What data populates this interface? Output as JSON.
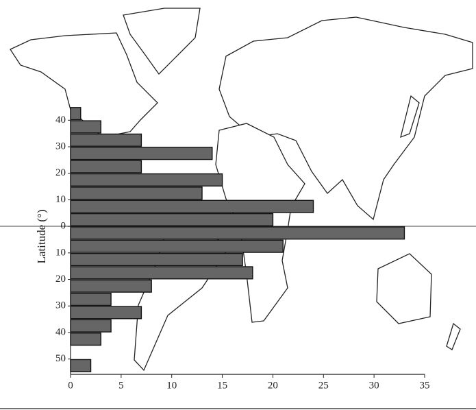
{
  "chart_data": {
    "type": "histogram",
    "orientation": "horizontal",
    "y_label": "Latitude (°)",
    "bins": [
      45,
      40,
      35,
      30,
      25,
      20,
      15,
      10,
      5,
      0,
      -5,
      -10,
      -15,
      -20,
      -25,
      -30,
      -35,
      -40,
      -45,
      -50,
      -55
    ],
    "values": [
      1,
      3,
      7,
      14,
      7,
      15,
      13,
      24,
      20,
      33,
      21,
      17,
      18,
      8,
      4,
      7,
      4,
      3,
      0,
      2
    ],
    "color": "#666666",
    "xlim": [
      0,
      35
    ],
    "xticks": [
      0,
      5,
      10,
      15,
      20,
      25,
      30,
      35
    ],
    "ylim": [
      -55,
      45
    ],
    "yticks": [
      40,
      30,
      20,
      10,
      0,
      {
        "value": -10,
        "label": "10"
      },
      {
        "value": -20,
        "label": "20"
      },
      {
        "value": -30,
        "label": "30"
      },
      {
        "value": -40,
        "label": "40"
      },
      {
        "value": -50,
        "label": "50"
      }
    ]
  }
}
